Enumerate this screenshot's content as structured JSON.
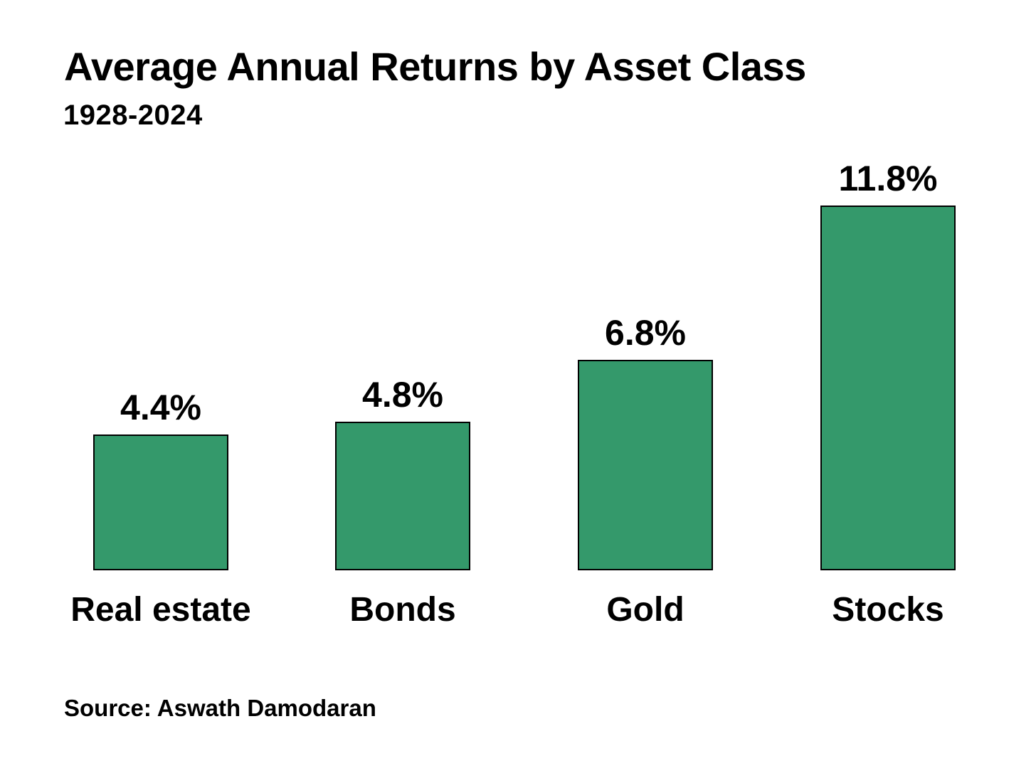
{
  "header": {
    "title": "Average Annual Returns by Asset Class",
    "subtitle": "1928-2024"
  },
  "chart_data": {
    "type": "bar",
    "title": "Average Annual Returns by Asset Class",
    "subtitle": "1928-2024",
    "categories": [
      "Real estate",
      "Bonds",
      "Gold",
      "Stocks"
    ],
    "values": [
      4.4,
      4.8,
      6.8,
      11.8
    ],
    "value_labels": [
      "4.4%",
      "4.8%",
      "6.8%",
      "11.8%"
    ],
    "unit": "percent",
    "ylabel": "",
    "xlabel": "",
    "ylim": [
      0,
      13
    ],
    "grid": false,
    "legend": false,
    "axes_shown": false,
    "bar_color": "#34996B",
    "bar_border_color": "#000000",
    "background_color": "#FFFFFF",
    "text_color": "#000000"
  },
  "footer": {
    "source": "Source: Aswath Damodaran"
  }
}
